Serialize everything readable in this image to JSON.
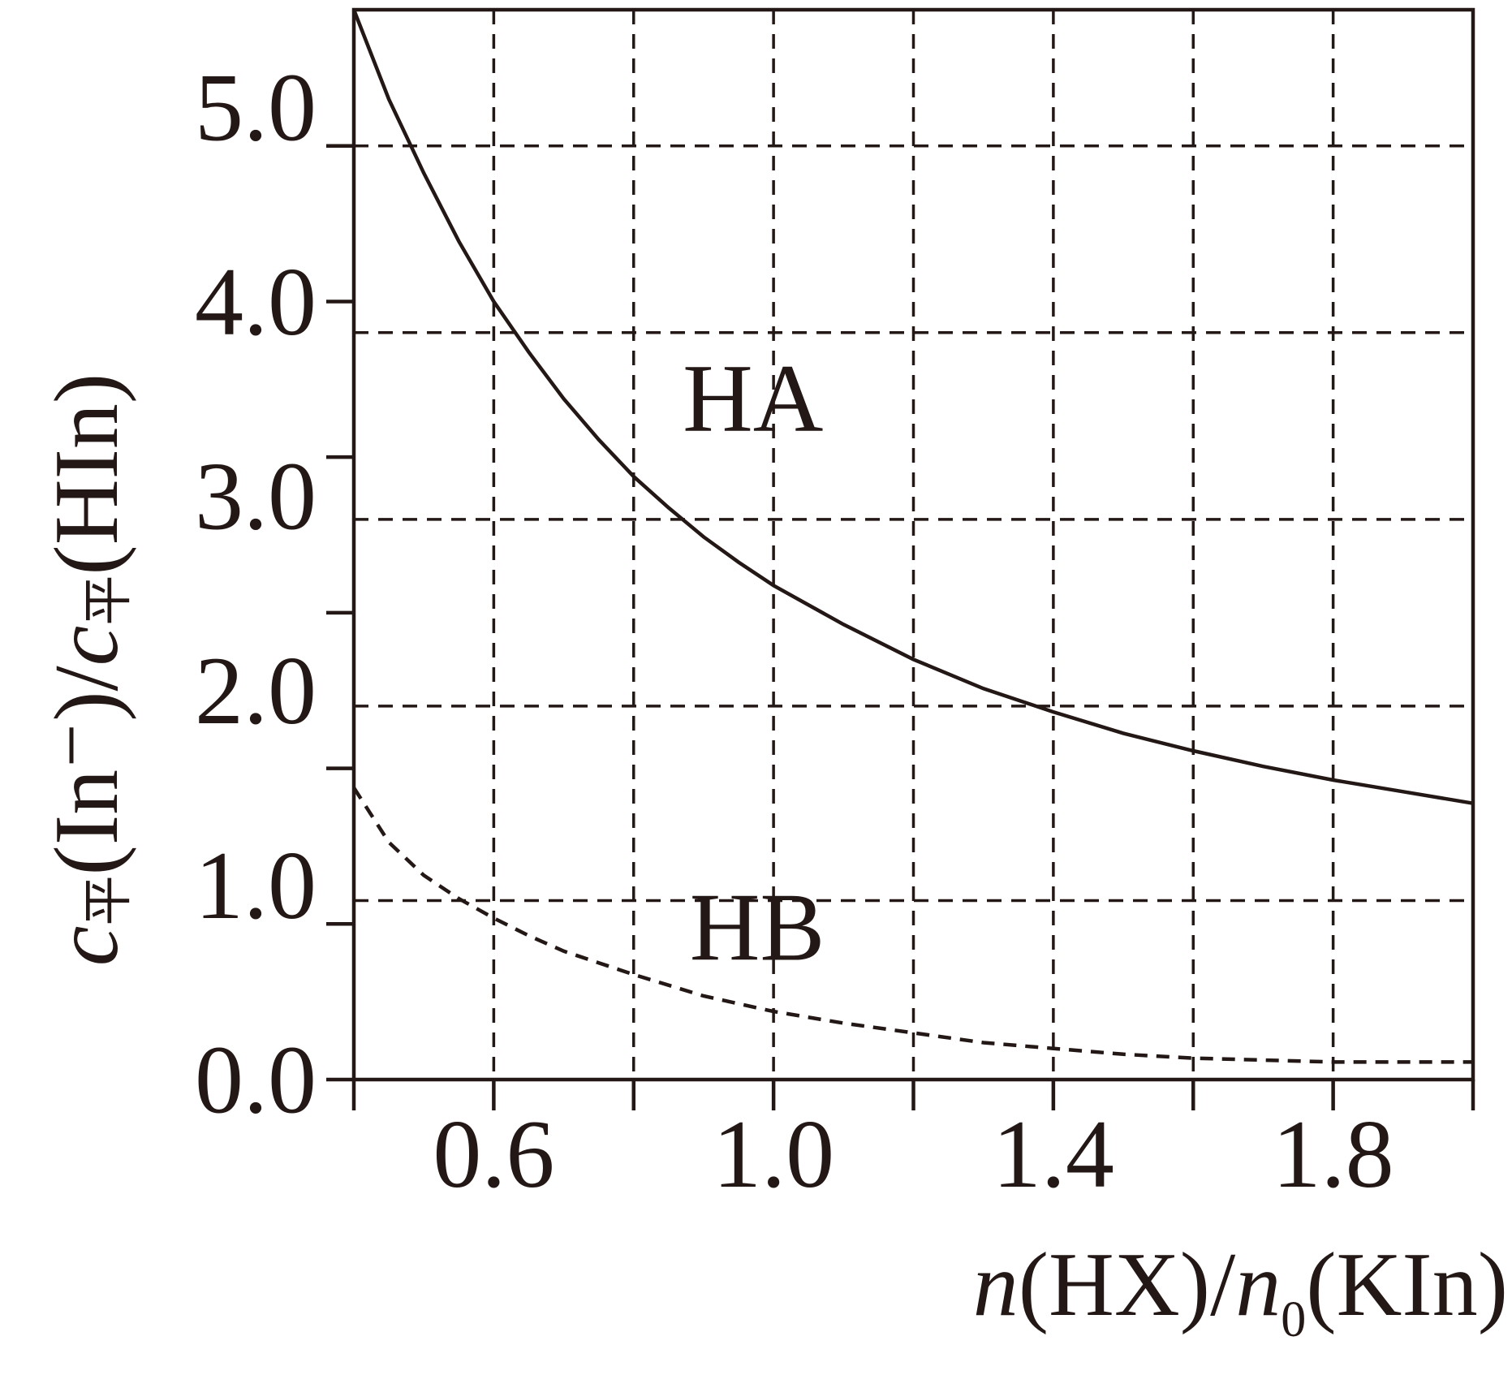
{
  "chart_data": {
    "type": "line",
    "title": "",
    "xlabel": {
      "var": "n",
      "species": "(HX)",
      "slash": "/",
      "var2": "n",
      "sub": "0",
      "species2": "(KIn)"
    },
    "ylabel": {
      "var": "c",
      "sub": "平",
      "species": "(In⁻)",
      "slash": "/",
      "var2": "c",
      "sub2": "平",
      "species2": "(HIn)"
    },
    "xlim": [
      0.4,
      2.0
    ],
    "ylim": [
      0.0,
      5.5
    ],
    "x_tick_labels": [
      {
        "value": 0.6,
        "label": "0.6"
      },
      {
        "value": 1.0,
        "label": "1.0"
      },
      {
        "value": 1.4,
        "label": "1.4"
      },
      {
        "value": 1.8,
        "label": "1.8"
      }
    ],
    "x_tick_marks": [
      0.4,
      0.6,
      0.8,
      1.0,
      1.2,
      1.4,
      1.6,
      1.8,
      2.0
    ],
    "x_gridlines": [
      0.6,
      0.8,
      1.0,
      1.2,
      1.4,
      1.6,
      1.8
    ],
    "y_tick_labels": [
      {
        "value": 0.0,
        "label": "0.0"
      },
      {
        "value": 1.0,
        "label": "1.0"
      },
      {
        "value": 2.0,
        "label": "2.0"
      },
      {
        "value": 3.0,
        "label": "3.0"
      },
      {
        "value": 4.0,
        "label": "4.0"
      },
      {
        "value": 5.0,
        "label": "5.0"
      }
    ],
    "y_tick_marks": [
      0.0,
      0.8,
      1.6,
      2.4,
      3.2,
      4.0,
      4.8
    ],
    "y_gridlines": [
      0.92,
      1.92,
      2.88,
      3.84,
      4.8
    ],
    "grid": true,
    "series": [
      {
        "name": "HA",
        "line_style": "solid",
        "x": [
          0.4,
          0.45,
          0.5,
          0.55,
          0.6,
          0.65,
          0.7,
          0.75,
          0.8,
          0.85,
          0.9,
          0.95,
          1.0,
          1.1,
          1.2,
          1.3,
          1.4,
          1.5,
          1.6,
          1.7,
          1.8,
          1.9,
          2.0
        ],
        "y": [
          5.5,
          5.04,
          4.66,
          4.31,
          4.0,
          3.74,
          3.5,
          3.29,
          3.1,
          2.94,
          2.79,
          2.66,
          2.54,
          2.34,
          2.16,
          2.01,
          1.89,
          1.78,
          1.69,
          1.61,
          1.54,
          1.48,
          1.42
        ],
        "label_position": {
          "x": 0.87,
          "y": 3.45
        }
      },
      {
        "name": "HB",
        "line_style": "dashed",
        "x": [
          0.4,
          0.45,
          0.5,
          0.55,
          0.6,
          0.65,
          0.7,
          0.75,
          0.8,
          0.9,
          1.0,
          1.1,
          1.2,
          1.3,
          1.4,
          1.5,
          1.6,
          1.7,
          1.8,
          1.9,
          2.0
        ],
        "y": [
          1.5,
          1.22,
          1.05,
          0.93,
          0.83,
          0.74,
          0.66,
          0.6,
          0.54,
          0.43,
          0.35,
          0.29,
          0.24,
          0.19,
          0.16,
          0.13,
          0.11,
          0.1,
          0.09,
          0.09,
          0.09
        ],
        "label_position": {
          "x": 0.88,
          "y": 0.73
        }
      }
    ],
    "colors": {
      "ink": "#231815",
      "background": "#ffffff"
    }
  }
}
